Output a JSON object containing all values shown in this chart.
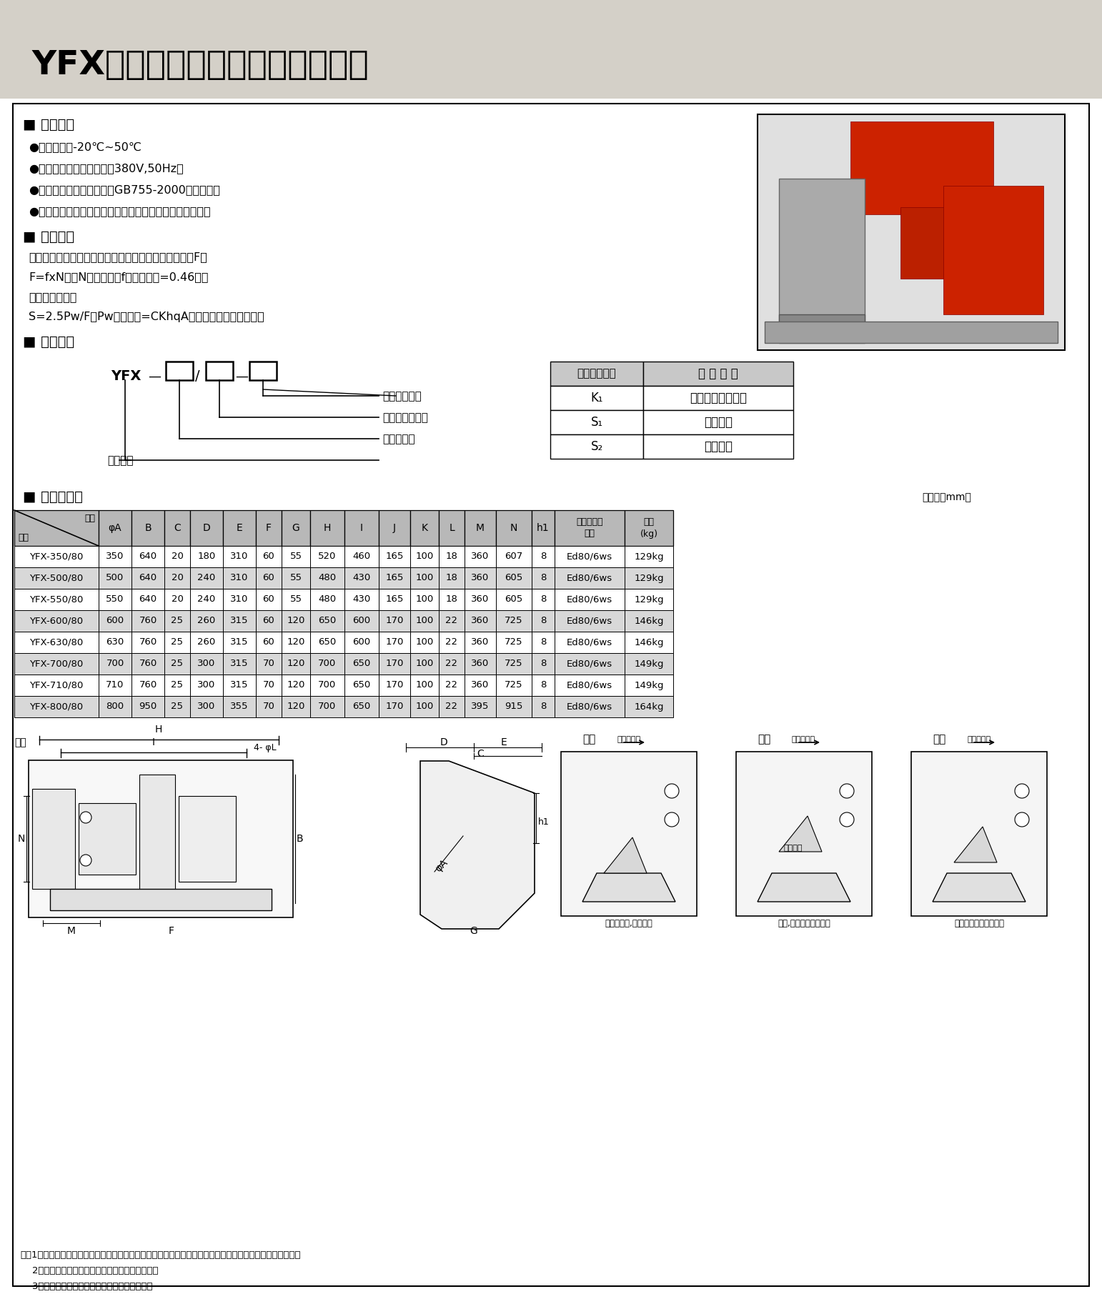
{
  "title": "YFX系列电力液压防风铁楔制动器",
  "bg_color_header": "#d4d0c8",
  "section1_title": "■ 使用条件",
  "section1_bullets": [
    "●环境温度：-20℃~50℃",
    "●一般用于三相交流电源：380V,50Hz。",
    "●使用地点的海拔高度符合GB755-2000有关规定。",
    "●户外雨雪侵蚀或有腐蚀性气体和介质应采用防腐型产品。"
  ],
  "section2_title": "■ 技术参数",
  "section2_lines": [
    "单台防风铁楔制动器的防风能力（折算为水平方向的力F）",
    "F=fxN轮（N轮为轮压；f为摩擦系数=0.46）。",
    "整机应装的台数",
    "S=2.5Pw/F（Pw为风载荷=CKhqA）参见起重机设计规范。"
  ],
  "section3_title": "■ 型号意义",
  "addon_table_headers": [
    "附加功能代号",
    "表 示 意 义"
  ],
  "addon_table_rows": [
    [
      "K₁",
      "上升显示行程开关"
    ],
    [
      "S₁",
      "左式安装"
    ],
    [
      "S₂",
      "右式安装"
    ]
  ],
  "section4_title": "■ 外形尺寸表",
  "unit_text": "单位：（mm）",
  "table_headers": [
    "型号",
    "尺寸",
    "φA",
    "B",
    "C",
    "D",
    "E",
    "F",
    "G",
    "H",
    "I",
    "J",
    "K",
    "L",
    "M",
    "N",
    "h1",
    "匹配推动器\n型号",
    "重量\n(kg)"
  ],
  "table_rows": [
    [
      "YFX-350/80",
      "350",
      "640",
      "20",
      "180",
      "310",
      "60",
      "55",
      "520",
      "460",
      "165",
      "100",
      "18",
      "360",
      "607",
      "8",
      "Ed80/6ws",
      "129kg"
    ],
    [
      "YFX-500/80",
      "500",
      "640",
      "20",
      "240",
      "310",
      "60",
      "55",
      "480",
      "430",
      "165",
      "100",
      "18",
      "360",
      "605",
      "8",
      "Ed80/6ws",
      "129kg"
    ],
    [
      "YFX-550/80",
      "550",
      "640",
      "20",
      "240",
      "310",
      "60",
      "55",
      "480",
      "430",
      "165",
      "100",
      "18",
      "360",
      "605",
      "8",
      "Ed80/6ws",
      "129kg"
    ],
    [
      "YFX-600/80",
      "600",
      "760",
      "25",
      "260",
      "315",
      "60",
      "120",
      "650",
      "600",
      "170",
      "100",
      "22",
      "360",
      "725",
      "8",
      "Ed80/6ws",
      "146kg"
    ],
    [
      "YFX-630/80",
      "630",
      "760",
      "25",
      "260",
      "315",
      "60",
      "120",
      "650",
      "600",
      "170",
      "100",
      "22",
      "360",
      "725",
      "8",
      "Ed80/6ws",
      "146kg"
    ],
    [
      "YFX-700/80",
      "700",
      "760",
      "25",
      "300",
      "315",
      "70",
      "120",
      "700",
      "650",
      "170",
      "100",
      "22",
      "360",
      "725",
      "8",
      "Ed80/6ws",
      "149kg"
    ],
    [
      "YFX-710/80",
      "710",
      "760",
      "25",
      "300",
      "315",
      "70",
      "120",
      "700",
      "650",
      "170",
      "100",
      "22",
      "360",
      "725",
      "8",
      "Ed80/6ws",
      "149kg"
    ],
    [
      "YFX-800/80",
      "800",
      "950",
      "25",
      "300",
      "355",
      "70",
      "120",
      "700",
      "650",
      "170",
      "100",
      "22",
      "395",
      "915",
      "8",
      "Ed80/6ws",
      "164kg"
    ]
  ],
  "notes": [
    "注：1、电力液压防风铁楔制动器分左式和右式；从上图中的主视图看，推动器在左边为左式，在右边为右式。",
    "    2、由于规格不同，具体结构可能与上图有差异。",
    "    3、具体型号，结构外形尺寸保留更改的权利。"
  ],
  "row_colors": [
    "#ffffff",
    "#d8d8d8"
  ]
}
